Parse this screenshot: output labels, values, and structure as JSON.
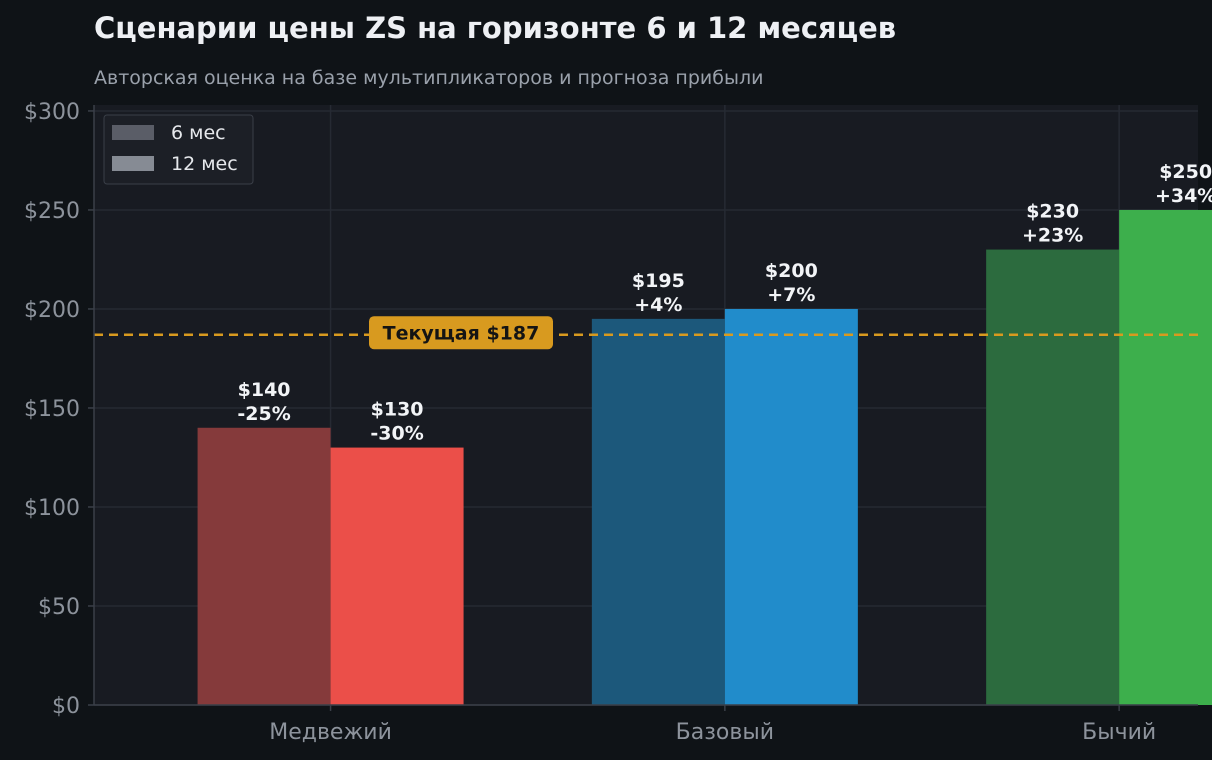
{
  "chart_data": {
    "type": "bar",
    "title": "Сценарии цены ZS на горизонте 6 и 12 месяцев",
    "subtitle": "Авторская оценка на базе мультипликаторов и прогноза прибыли",
    "xlabel": "",
    "ylabel": "",
    "categories": [
      "Медвежий",
      "Базовый",
      "Бычий"
    ],
    "series": [
      {
        "name": "6 мес",
        "values": [
          140,
          195,
          230
        ],
        "labels": [
          "$140\n-25%",
          "$195\n+4%",
          "$230\n+23%"
        ],
        "colors": [
          "#853a3b",
          "#1c587b",
          "#2c6b3e"
        ]
      },
      {
        "name": "12 мес",
        "values": [
          130,
          200,
          250
        ],
        "labels": [
          "$130\n-30%",
          "$200\n+7%",
          "$250\n+34%"
        ],
        "colors": [
          "#eb4f49",
          "#218ccb",
          "#3daf4c"
        ]
      }
    ],
    "y_ticks": [
      0,
      50,
      100,
      150,
      200,
      250,
      300
    ],
    "y_tick_labels": [
      "$0",
      "$50",
      "$100",
      "$150",
      "$200",
      "$250",
      "$300"
    ],
    "ylim": [
      0,
      303
    ],
    "reference_line": {
      "value": 187,
      "label": "Текущая $187",
      "color": "#d89a1f"
    },
    "legend": {
      "position": "top-left",
      "items": [
        {
          "label": "6 мес",
          "color": "#5a5d67"
        },
        {
          "label": "12 мес",
          "color": "#868b94"
        }
      ]
    },
    "grid": true,
    "colors": {
      "page_background": "#0f1317",
      "plot_background": "#181b22",
      "grid": "#262a33",
      "axis": "#3a3f48"
    }
  }
}
